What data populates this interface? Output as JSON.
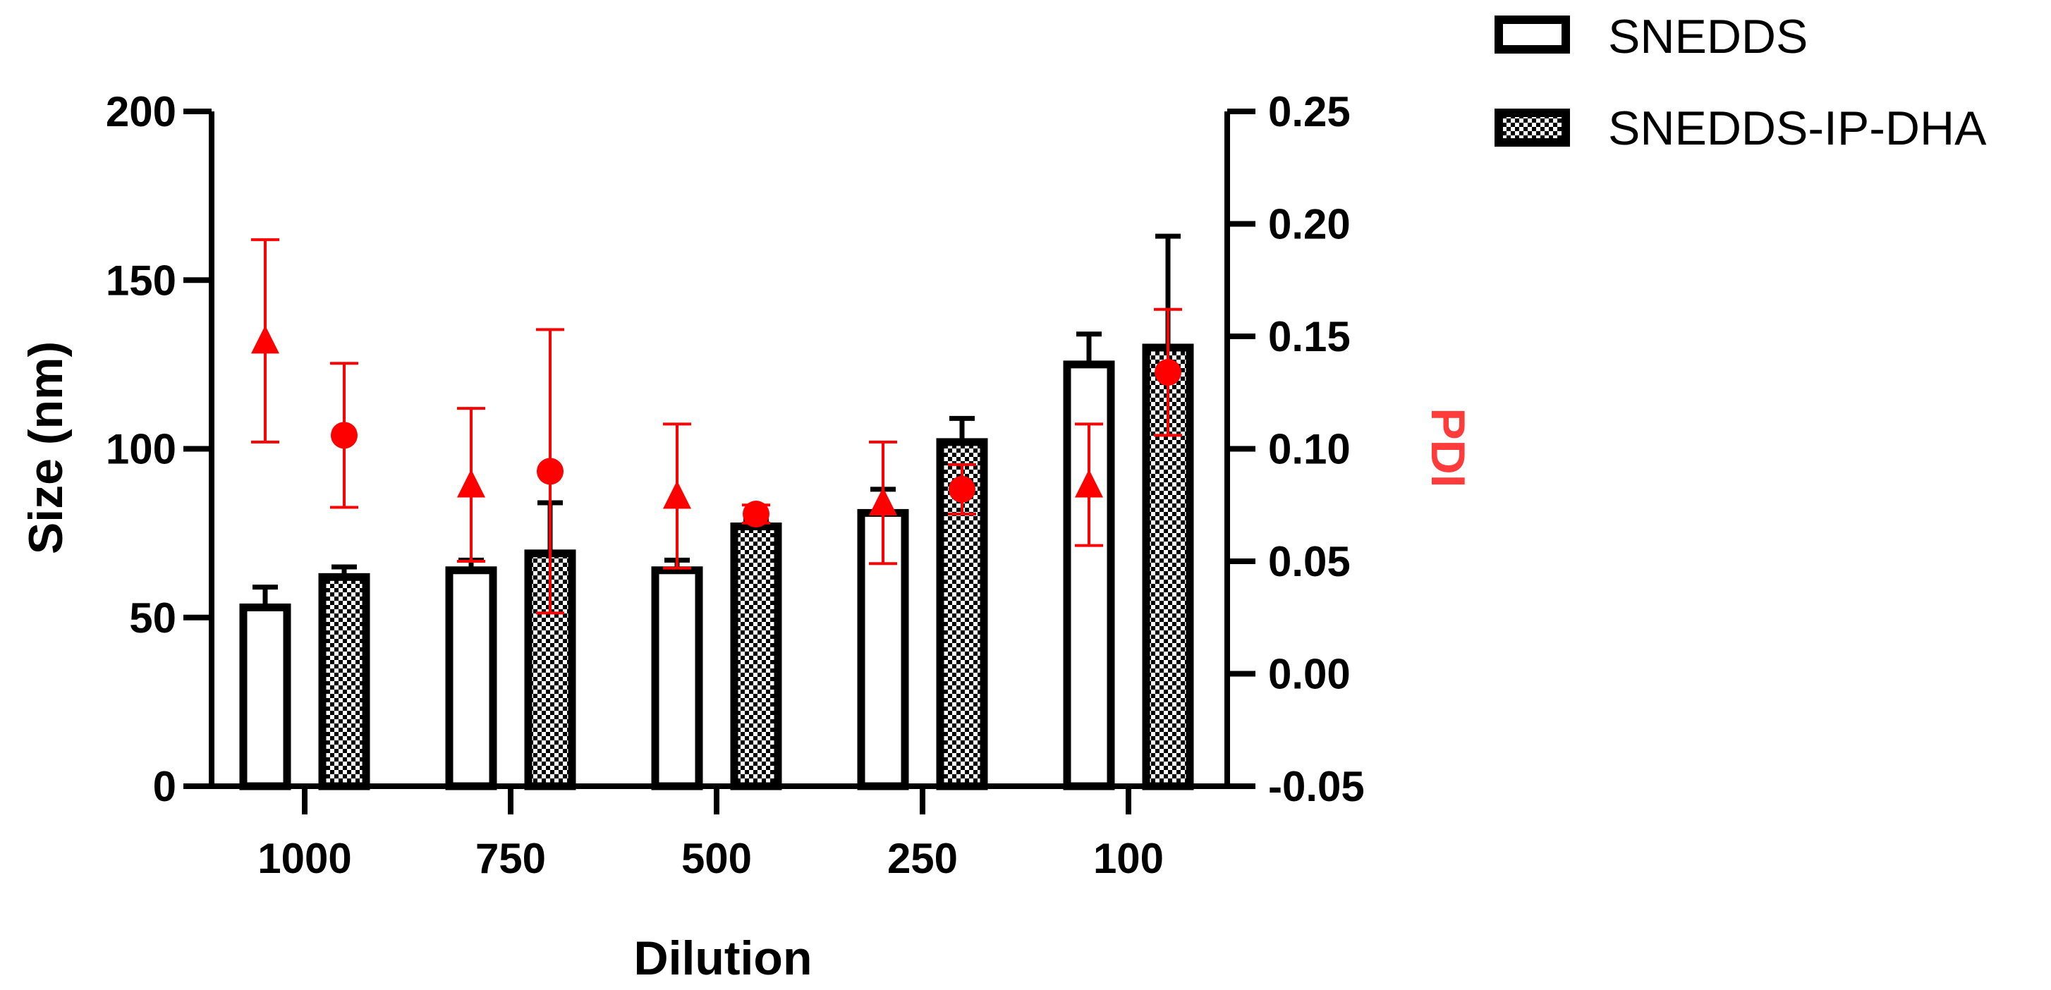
{
  "chart_data": {
    "type": "bar",
    "title": "",
    "xlabel": "Dilution",
    "ylabel": "Size (nm)",
    "y2label": "PDI",
    "categories": [
      "1000",
      "750",
      "500",
      "250",
      "100"
    ],
    "ylim": [
      0,
      200
    ],
    "yticks": [
      "0",
      "50",
      "100",
      "150",
      "200"
    ],
    "y2lim": [
      -0.05,
      0.25
    ],
    "y2ticks": [
      "-0.05",
      "0.00",
      "0.05",
      "0.10",
      "0.15",
      "0.20",
      "0.25"
    ],
    "series": [
      {
        "name": "SNEDDS",
        "kind": "bar",
        "fill": "open",
        "values": [
          53,
          64,
          64,
          81,
          125
        ],
        "errors": [
          6,
          3,
          3,
          7,
          9
        ]
      },
      {
        "name": "SNEDDS-IP-DHA",
        "kind": "bar",
        "fill": "checkered",
        "values": [
          62,
          69,
          77,
          102,
          130
        ],
        "errors": [
          3,
          15,
          2,
          7,
          33
        ]
      }
    ],
    "pdi_series": [
      {
        "name": "SNEDDS PDI",
        "marker": "triangle",
        "color": "#ff0000",
        "values": [
          0.148,
          0.084,
          0.079,
          0.076,
          0.084
        ],
        "errors": [
          0.045,
          0.034,
          0.032,
          0.027,
          0.027
        ]
      },
      {
        "name": "SNEDDS-IP-DHA PDI",
        "marker": "circle",
        "color": "#ff0000",
        "values": [
          0.106,
          0.09,
          0.071,
          0.082,
          0.134
        ],
        "errors": [
          0.032,
          0.063,
          0.004,
          0.011,
          0.028
        ]
      }
    ],
    "legend": {
      "position": "top-right",
      "entries": [
        "SNEDDS",
        "SNEDDS-IP-DHA"
      ]
    }
  }
}
